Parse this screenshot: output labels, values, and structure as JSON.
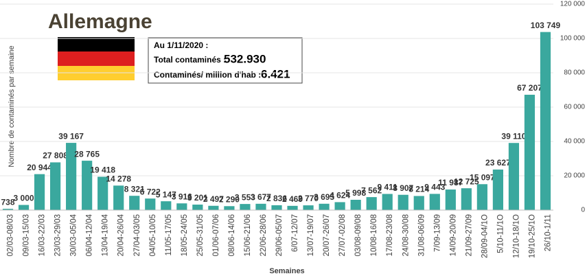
{
  "chart_data": {
    "type": "bar",
    "title": "Allemagne",
    "info": {
      "date": "Au 1/11/2020 :",
      "total_label": "Total contaminés :",
      "total_value": "532.930",
      "million_label": "Contaminés/ million d'hab :",
      "million_value": "6.421"
    },
    "ylabel": "Nombre de contaminés par semaine",
    "xlabel": "Semaines",
    "categories": [
      "02/03-08/03",
      "09/03-15/03",
      "16/03-22/03",
      "23/03-29/03",
      "30/03-05/04",
      "06/04-12/04",
      "13/04-19/04",
      "20/04-26/04",
      "27/04-03/05",
      "04/05-10/05",
      "11/05-17/05",
      "18/05-24/05",
      "25/05-31/05",
      "01/06-07/06",
      "08/06-14/06",
      "15/06-21/06",
      "22/06-28/06",
      "29/06-05/07",
      "6/07-12/07",
      "13/07-19/07",
      "20/07-26/07",
      "27/07-02/08",
      "03/08-09/08",
      "10/08-16/08",
      "17/08-23/08",
      "24/08-30/08",
      "31/08-06/09",
      "7/09-13/09",
      "14/09-20/09",
      "21/09-27/09",
      "28/09-04/1O",
      "5/10-11/1O",
      "12/10-18/1O",
      "19/10-25/1O",
      "26/10-1/11"
    ],
    "values": [
      738,
      3000,
      20944,
      27808,
      39167,
      28765,
      19418,
      14278,
      8321,
      6722,
      5147,
      3916,
      3201,
      2497,
      2290,
      3553,
      3677,
      2836,
      2469,
      2770,
      3695,
      4624,
      5998,
      7562,
      9411,
      8907,
      8214,
      9443,
      11987,
      12725,
      15097,
      23627,
      39110,
      67207,
      103749
    ],
    "value_labels": [
      "738",
      "3 000",
      "20 944",
      "27 808",
      "39 167",
      "28 765",
      "19 418",
      "14 278",
      "8 321",
      "6 722",
      "5 147",
      "3 916",
      "3 201",
      "2 497",
      "2 290",
      "3 553",
      "3 677",
      "2 836",
      "2 469",
      "2 770",
      "3 695",
      "4 624",
      "5 998",
      "7 562",
      "9 411",
      "8 907",
      "8 214",
      "9 443",
      "11 987",
      "12 725",
      "15 097",
      "23 627",
      "39 110",
      "67 207",
      "103 749"
    ],
    "color": "#3aa89e",
    "ylim": [
      0,
      120000
    ],
    "yticks": [
      0,
      {
        "value": 20000,
        "label": "20 000"
      },
      {
        "value": 40000,
        "label": "40 000"
      },
      {
        "value": 60000,
        "label": "60 000"
      },
      {
        "value": 80000,
        "label": "80 000"
      },
      {
        "value": 100000,
        "label": "100 000"
      },
      {
        "value": 120000,
        "label": "120 000"
      }
    ],
    "grid": true
  }
}
